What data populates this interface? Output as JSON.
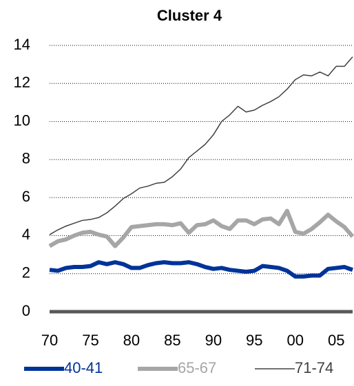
{
  "chart_data": {
    "type": "line",
    "title": "Cluster 4",
    "x": [
      1970,
      1971,
      1972,
      1973,
      1974,
      1975,
      1976,
      1977,
      1978,
      1979,
      1980,
      1981,
      1982,
      1983,
      1984,
      1985,
      1986,
      1987,
      1988,
      1989,
      1990,
      1991,
      1992,
      1993,
      1994,
      1995,
      1996,
      1997,
      1998,
      1999,
      2000,
      2001,
      2002,
      2003,
      2004,
      2005,
      2006,
      2007
    ],
    "series": [
      {
        "name": "40-41",
        "color": "#003399",
        "width": 6,
        "values": [
          2.2,
          2.15,
          2.3,
          2.35,
          2.35,
          2.4,
          2.6,
          2.5,
          2.6,
          2.5,
          2.3,
          2.3,
          2.45,
          2.55,
          2.6,
          2.55,
          2.55,
          2.6,
          2.5,
          2.35,
          2.25,
          2.3,
          2.2,
          2.15,
          2.1,
          2.15,
          2.4,
          2.35,
          2.3,
          2.15,
          1.85,
          1.85,
          1.9,
          1.9,
          2.25,
          2.3,
          2.35,
          2.2
        ]
      },
      {
        "name": "65-67",
        "color": "#a6a6a6",
        "width": 6,
        "values": [
          3.45,
          3.7,
          3.8,
          4.0,
          4.15,
          4.2,
          4.05,
          3.95,
          3.45,
          3.9,
          4.45,
          4.5,
          4.55,
          4.6,
          4.6,
          4.55,
          4.65,
          4.15,
          4.55,
          4.6,
          4.8,
          4.5,
          4.35,
          4.8,
          4.8,
          4.6,
          4.85,
          4.9,
          4.6,
          5.3,
          4.2,
          4.1,
          4.35,
          4.7,
          5.1,
          4.75,
          4.45,
          3.95
        ]
      },
      {
        "name": "71-74",
        "color": "#404040",
        "width": 1.5,
        "values": [
          4.05,
          4.3,
          4.5,
          4.65,
          4.8,
          4.85,
          4.95,
          5.2,
          5.55,
          5.95,
          6.2,
          6.5,
          6.6,
          6.75,
          6.8,
          7.1,
          7.5,
          8.1,
          8.45,
          8.8,
          9.3,
          10.0,
          10.35,
          10.8,
          10.5,
          10.6,
          10.85,
          11.05,
          11.3,
          11.7,
          12.2,
          12.45,
          12.4,
          12.6,
          12.4,
          12.9,
          12.9,
          13.4
        ]
      }
    ],
    "xlim": [
      1970,
      2007
    ],
    "xticks": [
      {
        "value": 1970,
        "label": "70"
      },
      {
        "value": 1975,
        "label": "75"
      },
      {
        "value": 1980,
        "label": "80"
      },
      {
        "value": 1985,
        "label": "85"
      },
      {
        "value": 1990,
        "label": "90"
      },
      {
        "value": 1995,
        "label": "95"
      },
      {
        "value": 2000,
        "label": "00"
      },
      {
        "value": 2005,
        "label": "05"
      }
    ],
    "ylim": [
      0,
      14
    ],
    "yticks": [
      0,
      2,
      4,
      6,
      8,
      10,
      12,
      14
    ],
    "grid": true,
    "legend": "bottom"
  }
}
